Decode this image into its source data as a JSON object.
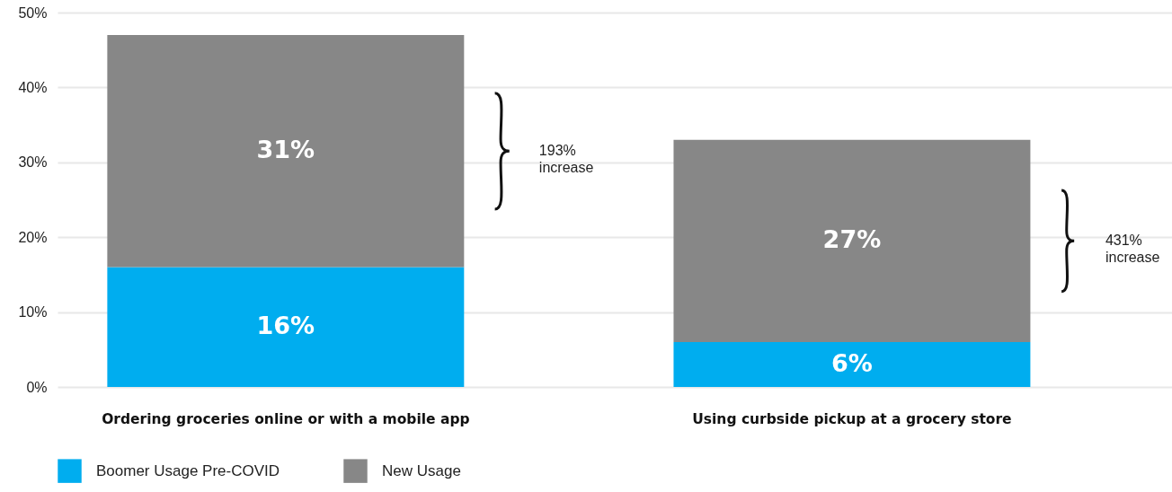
{
  "chart_data": {
    "type": "bar",
    "stacked": true,
    "categories": [
      "Ordering groceries online or with a mobile app",
      "Using curbside pickup at a grocery store"
    ],
    "series": [
      {
        "name": "Boomer Usage Pre-COVID",
        "color": "#00adef",
        "values": [
          16,
          6
        ]
      },
      {
        "name": "New Usage",
        "color": "#878787",
        "values": [
          31,
          27
        ]
      }
    ],
    "ylim": [
      0,
      50
    ],
    "yticks": [
      {
        "value": 0,
        "label": "0%"
      },
      {
        "value": 10,
        "label": "10%"
      },
      {
        "value": 20,
        "label": "20%"
      },
      {
        "value": 30,
        "label": "30%"
      },
      {
        "value": 40,
        "label": "40%"
      },
      {
        "value": 50,
        "label": "50%"
      }
    ],
    "grid": "y",
    "legend": "bottom",
    "value_labels": [
      [
        "16%",
        "6%"
      ],
      [
        "31%",
        "27%"
      ]
    ],
    "annotations": [
      "193% increase",
      "431% increase"
    ]
  }
}
